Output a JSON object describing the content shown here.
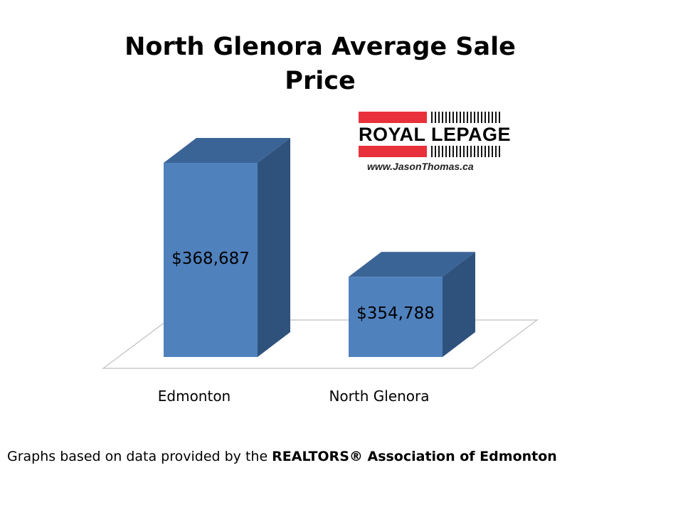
{
  "chart_data": {
    "type": "bar",
    "title": "North Glenora Average Sale Price",
    "categories": [
      "Edmonton",
      "North Glenora"
    ],
    "values": [
      368687,
      354788
    ],
    "data_labels": [
      "$368,687",
      "$354,788"
    ],
    "xlabel": "",
    "ylabel": "",
    "ylim": [
      345000,
      370000
    ],
    "grid": false,
    "legend": "none",
    "style": "3d-column"
  },
  "logo": {
    "wordmark": "ROYAL LEPAGE",
    "url": "www.JasonThomas.ca"
  },
  "source_note": {
    "prefix": "Graphs based on data provided by the ",
    "bold": "REALTORS® Association of Edmonton"
  },
  "colors": {
    "bar_front": "#4f81bd",
    "bar_top": "#3b6496",
    "bar_side": "#2f527d",
    "floor_stroke": "#bfbfbf",
    "logo_red": "#e8313b"
  }
}
